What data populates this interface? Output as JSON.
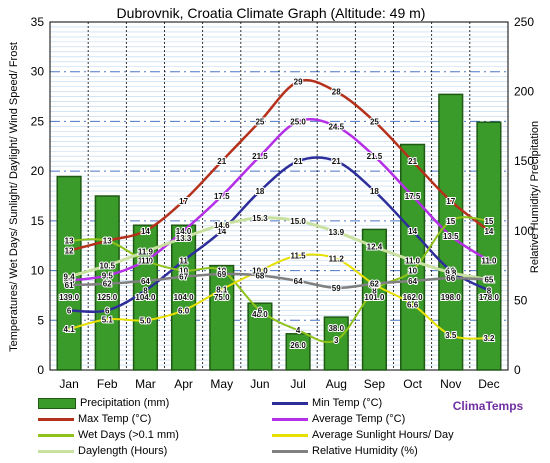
{
  "chart_data": {
    "type": "combo",
    "title": "Dubrovnik, Croatia Climate Graph (Altitude: 49 m)",
    "ylabel_left": "Temperatures/ Wet Days/ Sunlight/ Daylight/ Wind Speed/ Frost",
    "ylabel_right": "Relative Humidity/ Precipitation",
    "ylim_left": [
      0,
      35
    ],
    "ylim_right": [
      0,
      250
    ],
    "yticks_left": [
      "0",
      "5",
      "10",
      "15",
      "20",
      "25",
      "30",
      "35"
    ],
    "yticks_right": [
      "0",
      "50",
      "100",
      "150",
      "200",
      "250"
    ],
    "grid": true,
    "legend_position": "bottom",
    "watermark": "ClimaTemps",
    "categories": [
      "Jan",
      "Feb",
      "Mar",
      "Apr",
      "May",
      "Jun",
      "Jul",
      "Aug",
      "Sep",
      "Oct",
      "Nov",
      "Dec"
    ],
    "bars": {
      "name": "Precipitation (mm)",
      "axis": "right",
      "color": "#3a9a2a",
      "values": [
        139.0,
        125.0,
        104.0,
        104.0,
        75.0,
        48.0,
        26.0,
        38.0,
        101.0,
        162.0,
        198.0,
        178.0
      ],
      "labels": [
        "139.0",
        "125.0",
        "104.0",
        "104.0",
        "75.0",
        "48.0",
        "26.0",
        "38.0",
        "101.0",
        "162.0",
        "198.0",
        "178.0"
      ]
    },
    "series": [
      {
        "name": "Max Temp (°C)",
        "axis": "left",
        "color": "#b5311c",
        "width": 2.5,
        "values": [
          12,
          13,
          14,
          17,
          21,
          25,
          29,
          28,
          25,
          21,
          17,
          14
        ],
        "labels": [
          "12",
          "13",
          "14",
          "17",
          "21",
          "25",
          "29",
          "28",
          "25",
          "21",
          "17",
          "14"
        ]
      },
      {
        "name": "Min Temp (°C)",
        "axis": "left",
        "color": "#2e2e9a",
        "width": 2.5,
        "values": [
          6,
          6,
          8,
          11,
          14,
          18,
          21,
          21,
          18,
          14,
          10,
          8
        ],
        "labels": [
          "6",
          "6",
          "8",
          "11",
          "14",
          "18",
          "21",
          "21",
          "18",
          "14",
          "10",
          "8"
        ]
      },
      {
        "name": "Average Temp (°C)",
        "axis": "left",
        "color": "#b42fe6",
        "width": 2.5,
        "values": [
          9.0,
          9.5,
          11.0,
          14.0,
          17.5,
          21.5,
          25.0,
          24.5,
          21.5,
          17.5,
          13.5,
          11.0
        ],
        "labels": [
          "9.0",
          "9.5",
          "11.0",
          "14.0",
          "17.5",
          "21.5",
          "25.0",
          "24.5",
          "21.5",
          "17.5",
          "13.5",
          "11.0"
        ]
      },
      {
        "name": "Wet Days (>0.1 mm)",
        "axis": "left",
        "color": "#8fc21a",
        "width": 2,
        "values": [
          13,
          13,
          11,
          10,
          10,
          6,
          4,
          3,
          8,
          10,
          15,
          15
        ],
        "labels": [
          "13",
          "13",
          "11",
          "10",
          "10",
          "6",
          "4",
          "3",
          "8",
          "10",
          "15",
          "15"
        ]
      },
      {
        "name": "Average Sunlight Hours/ Day",
        "axis": "left",
        "color": "#e6e000",
        "width": 2,
        "values": [
          4.1,
          5.1,
          5.0,
          6.0,
          8.1,
          10.0,
          11.5,
          11.2,
          8.6,
          6.6,
          3.5,
          3.2
        ],
        "labels": [
          "4.1",
          "5.1",
          "5.0",
          "6.0",
          "8.1",
          "10.0",
          "11.5",
          "11.2",
          "8.6",
          "6.6",
          "3.5",
          "3.2"
        ]
      },
      {
        "name": "Daylength (Hours)",
        "axis": "left",
        "color": "#c8e0a0",
        "width": 3,
        "values": [
          9.4,
          10.5,
          11.9,
          13.3,
          14.6,
          15.3,
          15.0,
          13.9,
          12.4,
          11.0,
          9.8,
          9.1
        ],
        "labels": [
          "9.4",
          "10.5",
          "11.9",
          "13.3",
          "14.6",
          "15.3",
          "15.0",
          "13.9",
          "12.4",
          "11.0",
          "9.8",
          "9.1"
        ]
      },
      {
        "name": "Relative Humidity (%)",
        "axis": "right",
        "color": "#808080",
        "width": 2.5,
        "values": [
          61,
          62,
          64,
          67,
          69,
          68,
          64,
          59,
          62,
          64,
          66,
          65
        ],
        "labels": [
          "61",
          "62",
          "64",
          "67",
          "69",
          "68",
          "64",
          "59",
          "62",
          "64",
          "66",
          "65"
        ]
      }
    ]
  },
  "legend": [
    {
      "label": "Precipitation (mm)",
      "kind": "bar",
      "color": "#3a9a2a"
    },
    {
      "label": "Min Temp (°C)",
      "kind": "line",
      "color": "#2e2e9a"
    },
    {
      "label": "Max Temp (°C)",
      "kind": "line",
      "color": "#b5311c"
    },
    {
      "label": "Average Temp (°C)",
      "kind": "line",
      "color": "#b42fe6"
    },
    {
      "label": "Wet Days (>0.1 mm)",
      "kind": "line",
      "color": "#8fc21a"
    },
    {
      "label": "Average Sunlight Hours/ Day",
      "kind": "line",
      "color": "#e6e000"
    },
    {
      "label": "Daylength (Hours)",
      "kind": "line",
      "color": "#c8e0a0"
    },
    {
      "label": "Relative Humidity (%)",
      "kind": "line",
      "color": "#808080"
    }
  ]
}
